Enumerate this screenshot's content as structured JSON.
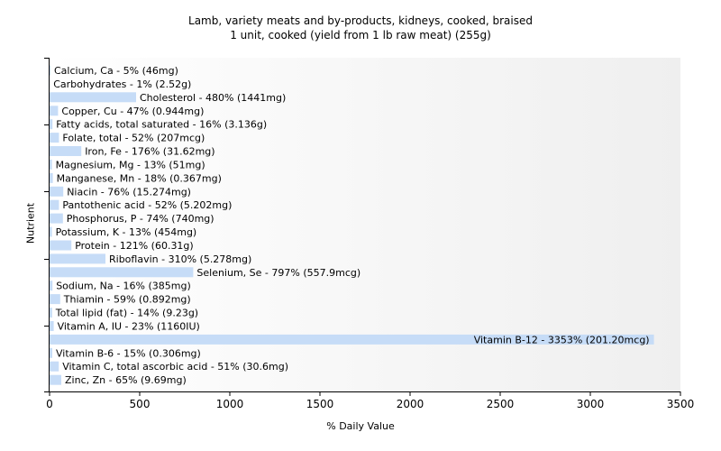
{
  "chart_data": {
    "type": "bar",
    "orientation": "horizontal",
    "title": "Lamb, variety meats and by-products, kidneys, cooked, braised",
    "subtitle": "1 unit, cooked (yield from 1 lb raw meat) (255g)",
    "xlabel": "% Daily Value",
    "ylabel": "Nutrient",
    "xlim": [
      0,
      3500
    ],
    "xticks": [
      "0",
      "500",
      "1000",
      "1500",
      "2000",
      "2500",
      "3000",
      "3500"
    ],
    "grid": false,
    "bar_color": "#c6dcf7",
    "categories": [
      "Calcium, Ca",
      "Carbohydrates",
      "Cholesterol",
      "Copper, Cu",
      "Fatty acids, total saturated",
      "Folate, total",
      "Iron, Fe",
      "Magnesium, Mg",
      "Manganese, Mn",
      "Niacin",
      "Pantothenic acid",
      "Phosphorus, P",
      "Potassium, K",
      "Protein",
      "Riboflavin",
      "Selenium, Se",
      "Sodium, Na",
      "Thiamin",
      "Total lipid (fat)",
      "Vitamin A, IU",
      "Vitamin B-12",
      "Vitamin B-6",
      "Vitamin C, total ascorbic acid",
      "Zinc, Zn"
    ],
    "values": [
      5,
      1,
      480,
      47,
      16,
      52,
      176,
      13,
      18,
      76,
      52,
      74,
      13,
      121,
      310,
      797,
      16,
      59,
      14,
      23,
      3353,
      15,
      51,
      65
    ],
    "labels": [
      "Calcium, Ca - 5% (46mg)",
      "Carbohydrates - 1% (2.52g)",
      "Cholesterol - 480% (1441mg)",
      "Copper, Cu - 47% (0.944mg)",
      "Fatty acids, total saturated - 16% (3.136g)",
      "Folate, total - 52% (207mcg)",
      "Iron, Fe - 176% (31.62mg)",
      "Magnesium, Mg - 13% (51mg)",
      "Manganese, Mn - 18% (0.367mg)",
      "Niacin - 76% (15.274mg)",
      "Pantothenic acid - 52% (5.202mg)",
      "Phosphorus, P - 74% (740mg)",
      "Potassium, K - 13% (454mg)",
      "Protein - 121% (60.31g)",
      "Riboflavin - 310% (5.278mg)",
      "Selenium, Se - 797% (557.9mcg)",
      "Sodium, Na - 16% (385mg)",
      "Thiamin - 59% (0.892mg)",
      "Total lipid (fat) - 14% (9.23g)",
      "Vitamin A, IU - 23% (1160IU)",
      "Vitamin B-12 - 3353% (201.20mcg)",
      "Vitamin B-6 - 15% (0.306mg)",
      "Vitamin C, total ascorbic acid - 51% (30.6mg)",
      "Zinc, Zn - 65% (9.69mg)"
    ]
  }
}
